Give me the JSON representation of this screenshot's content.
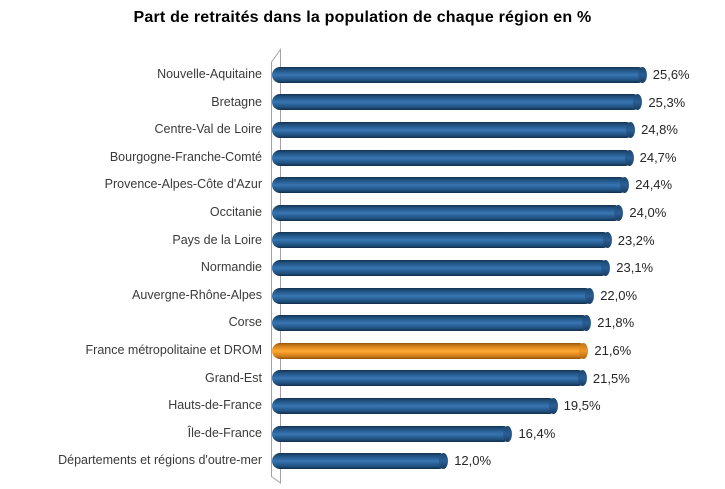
{
  "title": "Part de retraités dans la population de chaque région en %",
  "chart_data": {
    "type": "bar",
    "orientation": "horizontal",
    "style": "3d-cylinder",
    "title": "Part de retraités dans la population de chaque région en %",
    "xlabel": "",
    "ylabel": "",
    "unit": "%",
    "xlim": [
      0,
      26
    ],
    "grid": false,
    "legend": false,
    "categories": [
      "Nouvelle-Aquitaine",
      "Bretagne",
      "Centre-Val de Loire",
      "Bourgogne-Franche-Comté",
      "Provence-Alpes-Côte d'Azur",
      "Occitanie",
      "Pays de la Loire",
      "Normandie",
      "Auvergne-Rhône-Alpes",
      "Corse",
      "France métropolitaine et DROM",
      "Grand-Est",
      "Hauts-de-France",
      "Île-de-France",
      "Départements et régions d'outre-mer"
    ],
    "values": [
      25.6,
      25.3,
      24.8,
      24.7,
      24.4,
      24.0,
      23.2,
      23.1,
      22.0,
      21.8,
      21.6,
      21.5,
      19.5,
      16.4,
      12.0
    ],
    "value_labels": [
      "25,6%",
      "25,3%",
      "24,8%",
      "24,7%",
      "24,4%",
      "24,0%",
      "23,2%",
      "23,1%",
      "22,0%",
      "21,8%",
      "21,6%",
      "21,5%",
      "19,5%",
      "16,4%",
      "12,0%"
    ],
    "highlight_index": 10,
    "bar_color": "#2E6DA4",
    "highlight_color": "#F9A02B",
    "text_color": "#3A3A3A",
    "axis_wall_color": "#A3A3A3"
  }
}
